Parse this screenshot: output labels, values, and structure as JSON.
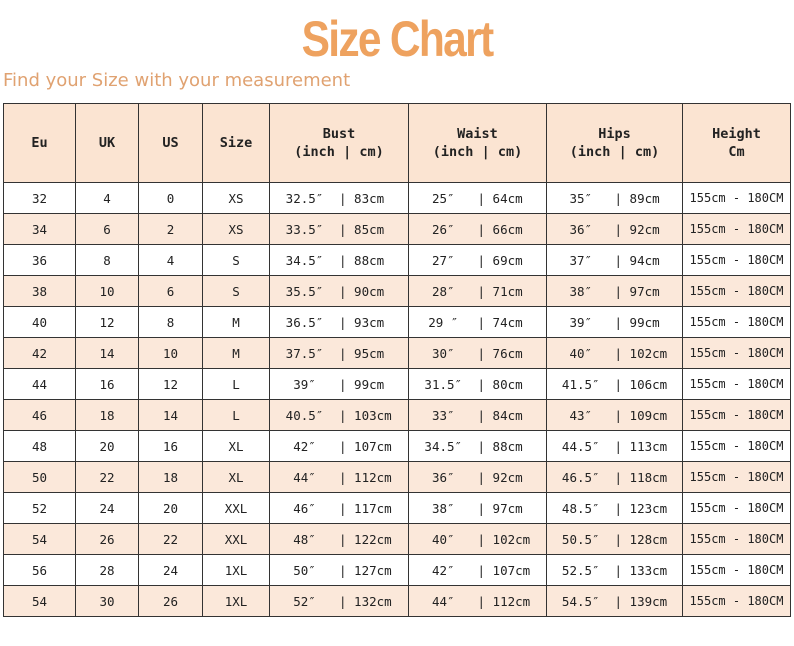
{
  "title": "Size Chart",
  "subtitle": "Find your Size with your measurement",
  "headers": {
    "eu": "Eu",
    "uk": "UK",
    "us": "US",
    "size": "Size",
    "bust": "Bust",
    "waist": "Waist",
    "hips": "Hips",
    "units": "(inch | cm)",
    "height": "Height",
    "height_unit": "Cm"
  },
  "rows": [
    {
      "eu": "32",
      "uk": "4",
      "us": "0",
      "size": "XS",
      "bust_in": "32.5″",
      "bust_cm": "| 83cm",
      "waist_in": "25″",
      "waist_cm": "| 64cm",
      "hips_in": "35″",
      "hips_cm": "| 89cm",
      "height": "155cm - 180CM"
    },
    {
      "eu": "34",
      "uk": "6",
      "us": "2",
      "size": "XS",
      "bust_in": "33.5″",
      "bust_cm": "| 85cm",
      "waist_in": "26″",
      "waist_cm": "| 66cm",
      "hips_in": "36″",
      "hips_cm": "| 92cm",
      "height": "155cm - 180CM"
    },
    {
      "eu": "36",
      "uk": "8",
      "us": "4",
      "size": "S",
      "bust_in": "34.5″",
      "bust_cm": "| 88cm",
      "waist_in": "27″",
      "waist_cm": "| 69cm",
      "hips_in": "37″",
      "hips_cm": "| 94cm",
      "height": "155cm - 180CM"
    },
    {
      "eu": "38",
      "uk": "10",
      "us": "6",
      "size": "S",
      "bust_in": "35.5″",
      "bust_cm": "| 90cm",
      "waist_in": "28″",
      "waist_cm": "| 71cm",
      "hips_in": "38″",
      "hips_cm": "| 97cm",
      "height": "155cm - 180CM"
    },
    {
      "eu": "40",
      "uk": "12",
      "us": "8",
      "size": "M",
      "bust_in": "36.5″",
      "bust_cm": "| 93cm",
      "waist_in": "29 ″",
      "waist_cm": "| 74cm",
      "hips_in": "39″",
      "hips_cm": "| 99cm",
      "height": "155cm - 180CM"
    },
    {
      "eu": "42",
      "uk": "14",
      "us": "10",
      "size": "M",
      "bust_in": "37.5″",
      "bust_cm": "| 95cm",
      "waist_in": "30″",
      "waist_cm": "| 76cm",
      "hips_in": "40″",
      "hips_cm": "| 102cm",
      "height": "155cm - 180CM"
    },
    {
      "eu": "44",
      "uk": "16",
      "us": "12",
      "size": "L",
      "bust_in": "39″",
      "bust_cm": "| 99cm",
      "waist_in": "31.5″",
      "waist_cm": "| 80cm",
      "hips_in": "41.5″",
      "hips_cm": "| 106cm",
      "height": "155cm - 180CM"
    },
    {
      "eu": "46",
      "uk": "18",
      "us": "14",
      "size": "L",
      "bust_in": "40.5″",
      "bust_cm": "| 103cm",
      "waist_in": "33″",
      "waist_cm": "| 84cm",
      "hips_in": "43″",
      "hips_cm": "| 109cm",
      "height": "155cm - 180CM"
    },
    {
      "eu": "48",
      "uk": "20",
      "us": "16",
      "size": "XL",
      "bust_in": "42″",
      "bust_cm": "| 107cm",
      "waist_in": "34.5″",
      "waist_cm": "| 88cm",
      "hips_in": "44.5″",
      "hips_cm": "| 113cm",
      "height": "155cm - 180CM"
    },
    {
      "eu": "50",
      "uk": "22",
      "us": "18",
      "size": "XL",
      "bust_in": "44″",
      "bust_cm": "| 112cm",
      "waist_in": "36″",
      "waist_cm": "| 92cm",
      "hips_in": "46.5″",
      "hips_cm": "| 118cm",
      "height": "155cm - 180CM"
    },
    {
      "eu": "52",
      "uk": "24",
      "us": "20",
      "size": "XXL",
      "bust_in": "46″",
      "bust_cm": "| 117cm",
      "waist_in": "38″",
      "waist_cm": "| 97cm",
      "hips_in": "48.5″",
      "hips_cm": "| 123cm",
      "height": "155cm - 180CM"
    },
    {
      "eu": "54",
      "uk": "26",
      "us": "22",
      "size": "XXL",
      "bust_in": "48″",
      "bust_cm": "| 122cm",
      "waist_in": "40″",
      "waist_cm": "| 102cm",
      "hips_in": "50.5″",
      "hips_cm": "| 128cm",
      "height": "155cm - 180CM"
    },
    {
      "eu": "56",
      "uk": "28",
      "us": "24",
      "size": "1XL",
      "bust_in": "50″",
      "bust_cm": "| 127cm",
      "waist_in": "42″",
      "waist_cm": "| 107cm",
      "hips_in": "52.5″",
      "hips_cm": "| 133cm",
      "height": "155cm - 180CM"
    },
    {
      "eu": "54",
      "uk": "30",
      "us": "26",
      "size": "1XL",
      "bust_in": "52″",
      "bust_cm": "| 132cm",
      "waist_in": "44″",
      "waist_cm": "| 112cm",
      "hips_in": "54.5″",
      "hips_cm": "| 139cm",
      "height": "155cm - 180CM"
    }
  ]
}
